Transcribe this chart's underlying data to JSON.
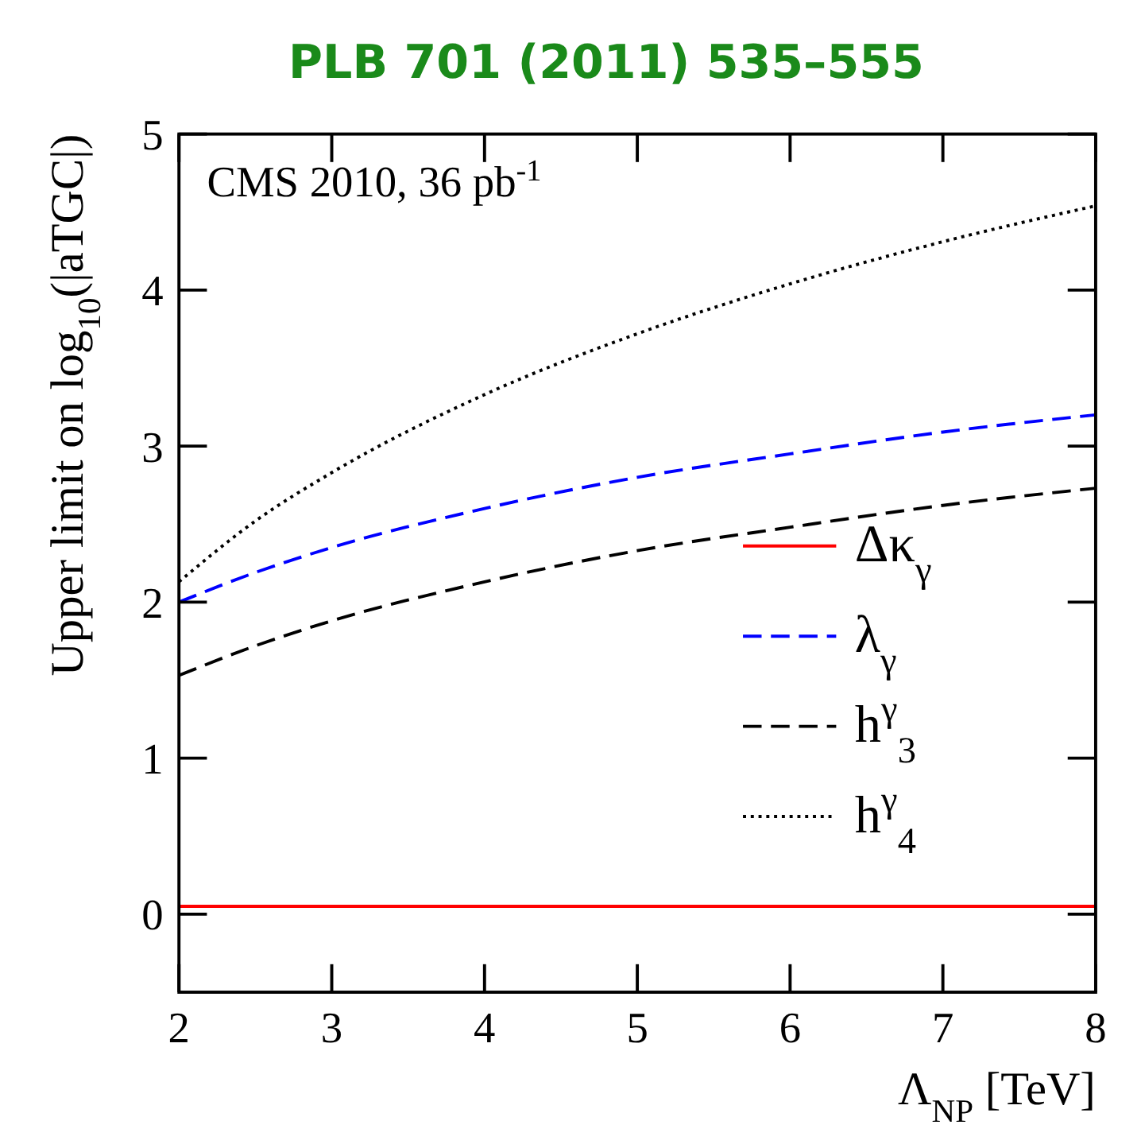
{
  "chart_data": {
    "type": "line",
    "title": "PLB 701 (2011) 535–555",
    "xlabel": "Λ$_{NP}$ [TeV]",
    "ylabel": "Upper limit on log$_{10}$(|aTGC|)",
    "annotations": [
      "CMS 2010, 36 pb$^{-1}$"
    ],
    "x": [
      2,
      2.5,
      3,
      4,
      5,
      6,
      7,
      8
    ],
    "xlim": [
      2,
      8
    ],
    "xticks": [
      2,
      3,
      4,
      5,
      6,
      7,
      8
    ],
    "ylim": [
      -0.5,
      5
    ],
    "yticks": [
      0,
      1,
      2,
      3,
      4,
      5
    ],
    "grid": false,
    "legend": "right",
    "marker": "none",
    "series": [
      {
        "name": "Δκ$_{γ}$",
        "color": "#ff0000",
        "line_style": "solid",
        "values": [
          0.05,
          0.05,
          0.05,
          0.05,
          0.05,
          0.05,
          0.05,
          0.05
        ]
      },
      {
        "name": "λ$_{γ}$",
        "color": "#0000ff",
        "line_style": "dashed",
        "values": [
          2.0,
          2.19,
          2.35,
          2.6,
          2.8,
          2.95,
          3.09,
          3.2
        ]
      },
      {
        "name": "h$^{γ}$$_{3}$",
        "color": "#000000",
        "line_style": "dashed",
        "values": [
          1.53,
          1.72,
          1.88,
          2.13,
          2.33,
          2.48,
          2.62,
          2.73
        ]
      },
      {
        "name": "h$^{γ}$$_{4}$",
        "color": "#000000",
        "line_style": "dotted",
        "values": [
          2.13,
          2.52,
          2.83,
          3.33,
          3.72,
          4.04,
          4.31,
          4.54
        ]
      }
    ]
  }
}
